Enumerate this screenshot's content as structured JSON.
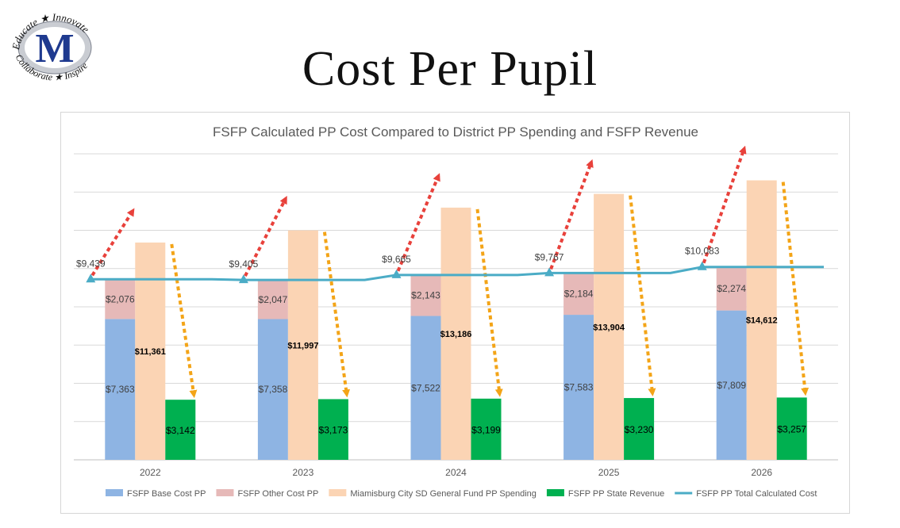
{
  "header": {
    "title": "Cost Per Pupil",
    "logo": {
      "letter": "M",
      "words": [
        "Educate",
        "Innovate",
        "Collaborate",
        "Inspire"
      ]
    }
  },
  "chart_data": {
    "type": "bar",
    "title": "FSFP Calculated PP Cost Compared to District PP Spending and FSFP Revenue",
    "categories": [
      "2022",
      "2023",
      "2024",
      "2025",
      "2026"
    ],
    "ylim": [
      0,
      16000
    ],
    "grid": true,
    "legend_position": "bottom",
    "series": [
      {
        "name": "FSFP Base Cost PP",
        "kind": "stacked-bar",
        "stack": "fsfp",
        "color": "#8eb4e3",
        "values": [
          7363,
          7358,
          7522,
          7583,
          7809
        ],
        "labels": [
          "$7,363",
          "$7,358",
          "$7,522",
          "$7,583",
          "$7,809"
        ]
      },
      {
        "name": "FSFP Other Cost PP",
        "kind": "stacked-bar",
        "stack": "fsfp",
        "color": "#e6b9b8",
        "values": [
          2076,
          2047,
          2143,
          2184,
          2274
        ],
        "labels": [
          "$2,076",
          "$2,047",
          "$2,143",
          "$2,184",
          "$2,274"
        ]
      },
      {
        "name": "Miamisburg City SD General Fund PP Spending",
        "kind": "bar",
        "color": "#fbd4b4",
        "values": [
          11361,
          11997,
          13186,
          13904,
          14612
        ],
        "labels": [
          "$11,361",
          "$11,997",
          "$13,186",
          "$13,904",
          "$14,612"
        ]
      },
      {
        "name": "FSFP PP State Revenue",
        "kind": "bar",
        "color": "#00b050",
        "values": [
          3142,
          3173,
          3199,
          3230,
          3257
        ],
        "labels": [
          "$3,142",
          "$3,173",
          "$3,199",
          "$3,230",
          "$3,257"
        ]
      },
      {
        "name": "FSFP PP Total Calculated Cost",
        "kind": "line",
        "color": "#4bacc6",
        "values": [
          9439,
          9405,
          9665,
          9767,
          10083
        ],
        "labels": [
          "$9,439",
          "$9,405",
          "$9,665",
          "$9,767",
          "$10,083"
        ]
      }
    ],
    "arrow_colors": {
      "up": "#e8413b",
      "down": "#f3a417"
    }
  }
}
